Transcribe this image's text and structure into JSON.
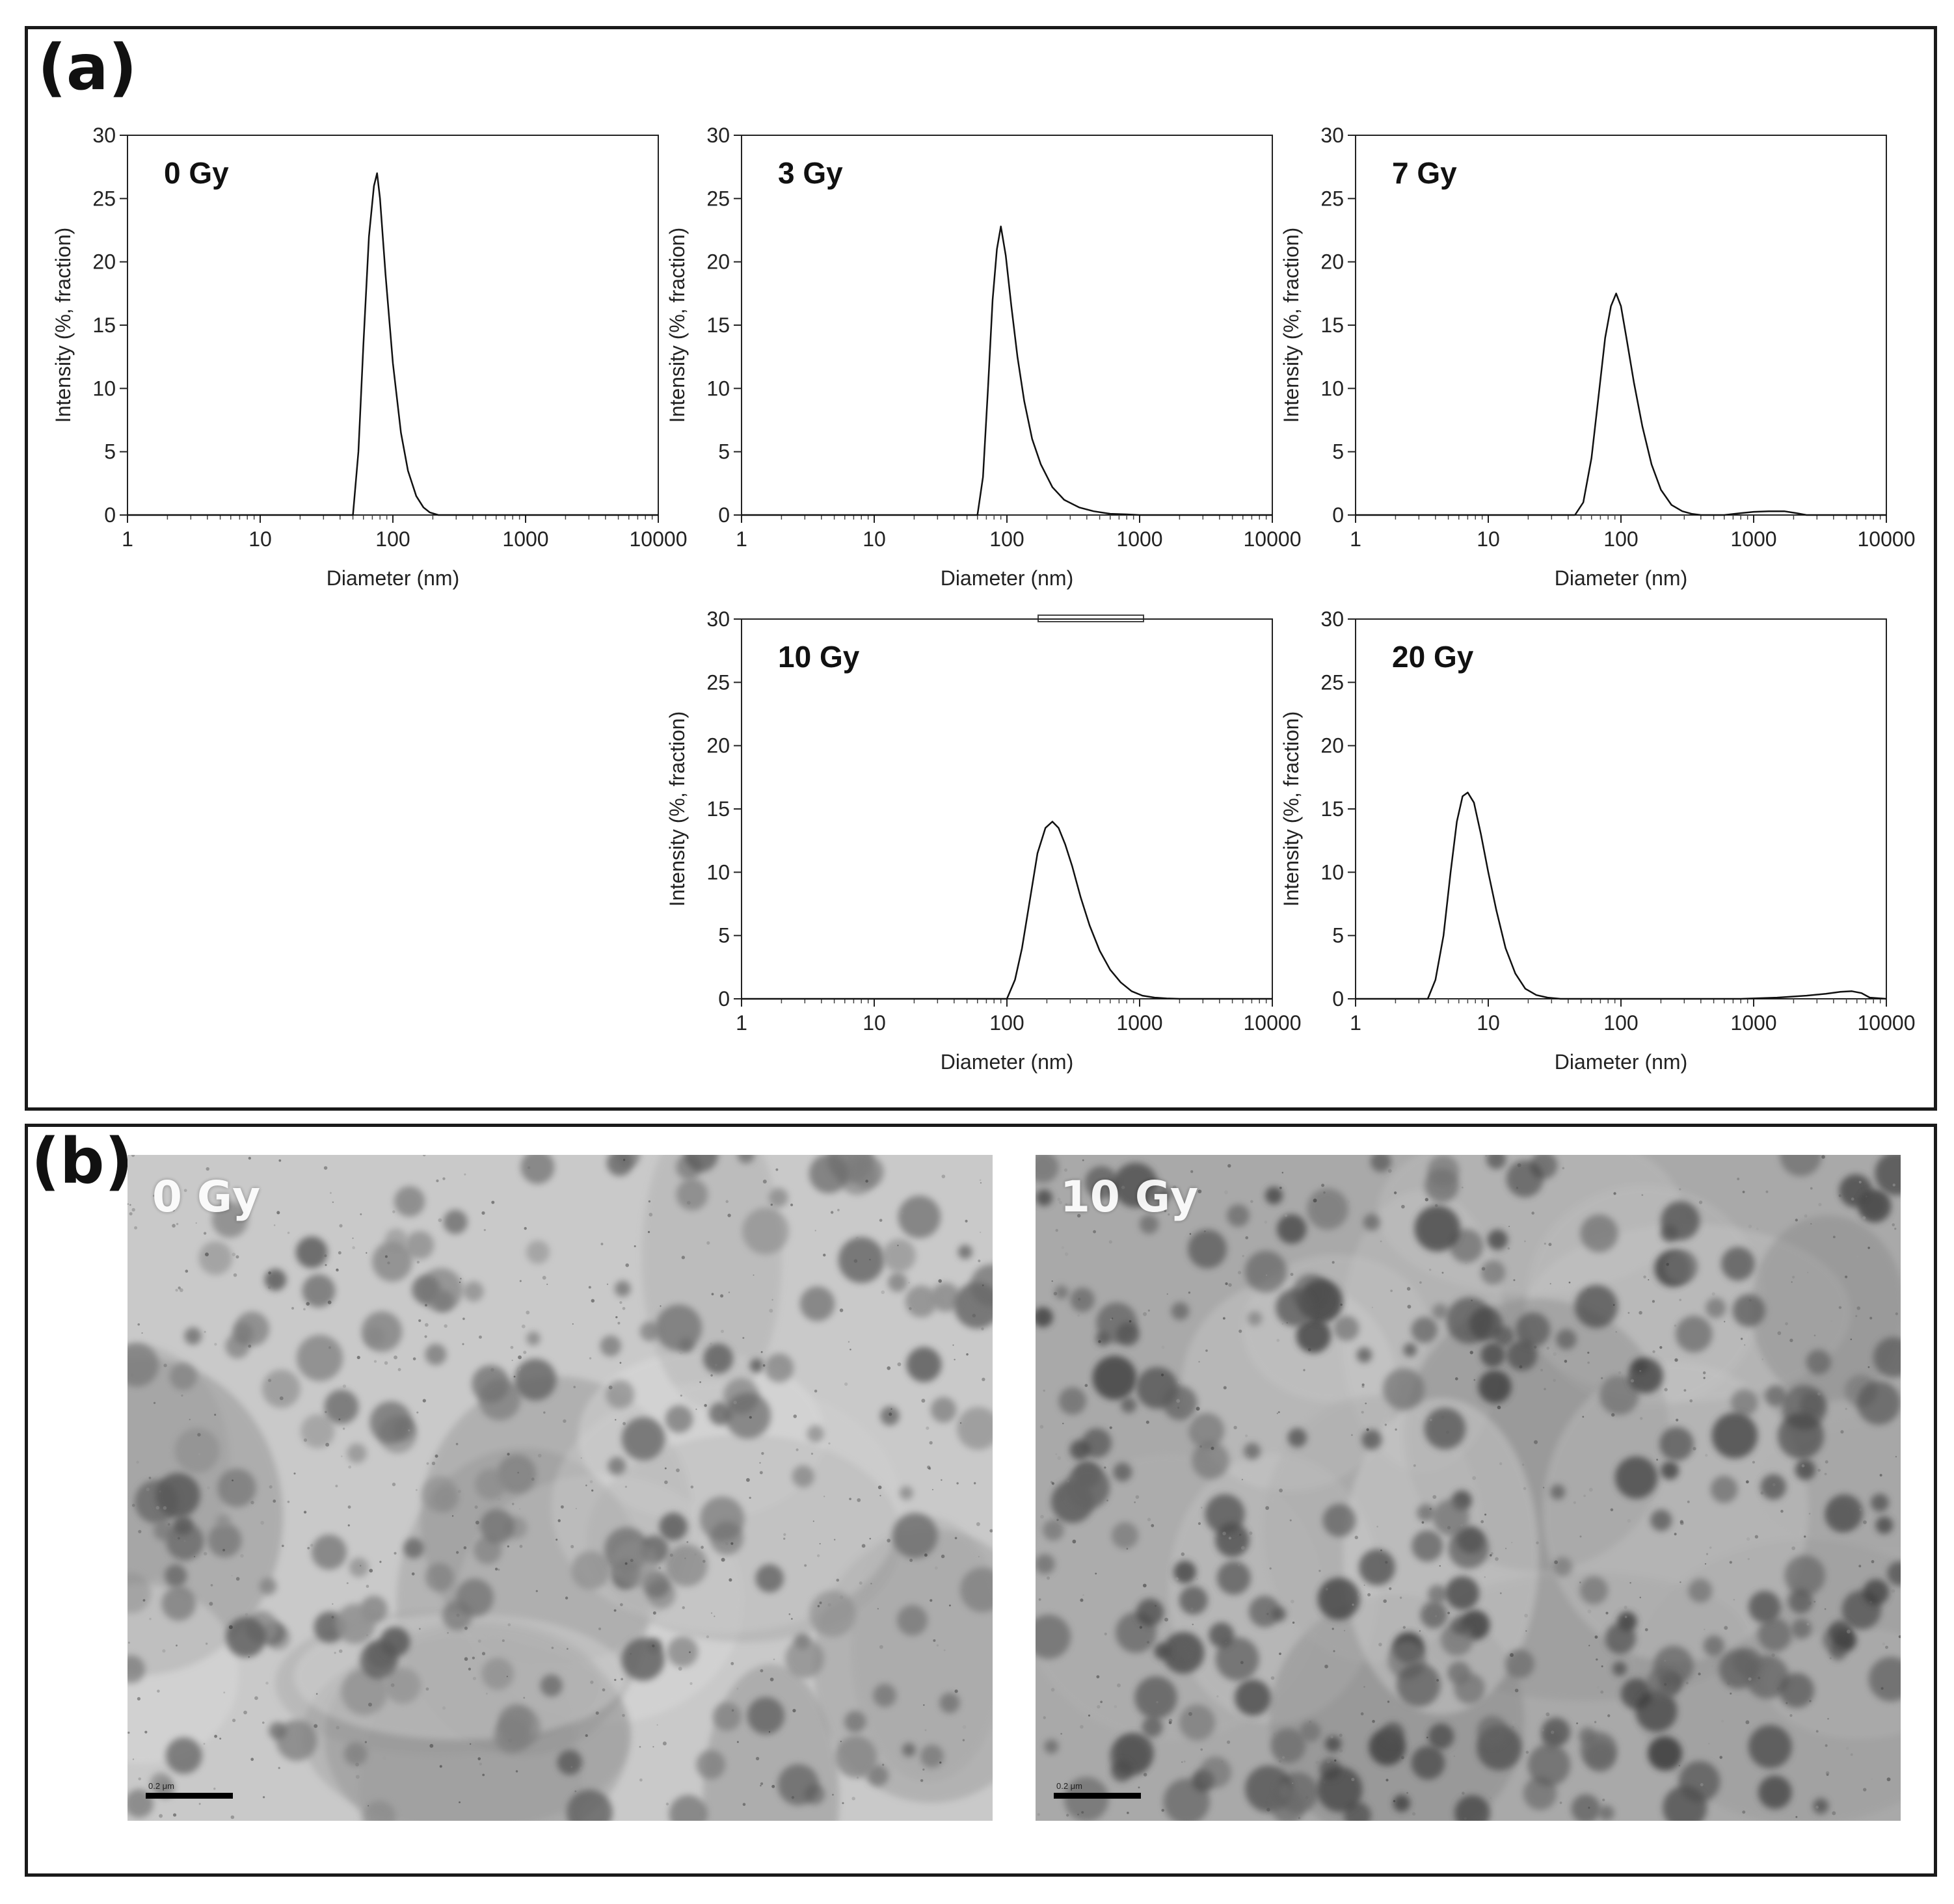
{
  "figure": {
    "panel_a_label": "(a)",
    "panel_b_label": "(b)"
  },
  "chart_data": [
    {
      "type": "line",
      "title": "0 Gy",
      "xlabel": "Diameter (nm)",
      "ylabel": "Intensity (%, fraction)",
      "xscale": "log",
      "xlim": [
        1,
        10000
      ],
      "ylim": [
        0,
        30
      ],
      "xticks": [
        "1",
        "10",
        "100",
        "1000",
        "10000"
      ],
      "yticks": [
        "0",
        "5",
        "10",
        "15",
        "20",
        "25",
        "30"
      ],
      "grid": false,
      "series": [
        {
          "x": [
            1,
            50,
            55,
            60,
            66,
            72,
            76,
            80,
            88,
            100,
            115,
            130,
            150,
            170,
            190,
            220,
            10000
          ],
          "y": [
            0,
            0,
            5,
            13.5,
            22,
            26,
            27,
            25,
            19,
            12,
            6.5,
            3.5,
            1.5,
            0.6,
            0.2,
            0,
            0
          ]
        }
      ]
    },
    {
      "type": "line",
      "title": "3 Gy",
      "xlabel": "Diameter (nm)",
      "ylabel": "Intensity (%, fraction)",
      "xscale": "log",
      "xlim": [
        1,
        10000
      ],
      "ylim": [
        0,
        30
      ],
      "xticks": [
        "1",
        "10",
        "100",
        "1000",
        "10000"
      ],
      "yticks": [
        "0",
        "5",
        "10",
        "15",
        "20",
        "25",
        "30"
      ],
      "grid": false,
      "series": [
        {
          "x": [
            1,
            60,
            66,
            72,
            78,
            84,
            90,
            98,
            108,
            120,
            135,
            155,
            180,
            220,
            270,
            350,
            450,
            600,
            800,
            1000,
            10000
          ],
          "y": [
            0,
            0,
            3,
            10,
            17,
            21,
            22.8,
            20.5,
            16.5,
            12.5,
            9,
            6,
            4,
            2.2,
            1.2,
            0.6,
            0.3,
            0.1,
            0.05,
            0,
            0
          ]
        }
      ]
    },
    {
      "type": "line",
      "title": "7 Gy",
      "xlabel": "Diameter (nm)",
      "ylabel": "Intensity (%, fraction)",
      "xscale": "log",
      "xlim": [
        1,
        10000
      ],
      "ylim": [
        0,
        30
      ],
      "xticks": [
        "1",
        "10",
        "100",
        "1000",
        "10000"
      ],
      "yticks": [
        "0",
        "5",
        "10",
        "15",
        "20",
        "25",
        "30"
      ],
      "grid": false,
      "series": [
        {
          "x": [
            1,
            45,
            52,
            60,
            68,
            76,
            84,
            92,
            100,
            110,
            125,
            145,
            170,
            200,
            240,
            290,
            340,
            400,
            600,
            800,
            1000,
            1300,
            1700,
            2100,
            2500,
            10000
          ],
          "y": [
            0,
            0,
            1,
            4.5,
            9.5,
            14,
            16.5,
            17.5,
            16.5,
            14,
            10.5,
            7,
            4,
            2,
            0.8,
            0.3,
            0.1,
            0,
            0,
            0.15,
            0.25,
            0.3,
            0.3,
            0.15,
            0,
            0
          ]
        }
      ]
    },
    {
      "type": "line",
      "title": "10 Gy",
      "xlabel": "Diameter (nm)",
      "ylabel": "Intensity (%, fraction)",
      "xscale": "log",
      "xlim": [
        1,
        10000
      ],
      "ylim": [
        0,
        30
      ],
      "xticks": [
        "1",
        "10",
        "100",
        "1000",
        "10000"
      ],
      "yticks": [
        "0",
        "5",
        "10",
        "15",
        "20",
        "25",
        "30"
      ],
      "grid": false,
      "series": [
        {
          "x": [
            1,
            100,
            115,
            130,
            150,
            170,
            195,
            220,
            245,
            275,
            310,
            360,
            420,
            500,
            600,
            720,
            870,
            1050,
            1300,
            1600,
            2000,
            10000
          ],
          "y": [
            0,
            0,
            1.5,
            4,
            8,
            11.5,
            13.5,
            14,
            13.5,
            12.2,
            10.5,
            8,
            5.8,
            3.8,
            2.3,
            1.3,
            0.6,
            0.25,
            0.1,
            0.03,
            0,
            0
          ]
        }
      ]
    },
    {
      "type": "line",
      "title": "20 Gy",
      "xlabel": "Diameter (nm)",
      "ylabel": "Intensity (%, fraction)",
      "xscale": "log",
      "xlim": [
        1,
        10000
      ],
      "ylim": [
        0,
        30
      ],
      "xticks": [
        "1",
        "10",
        "100",
        "1000",
        "10000"
      ],
      "yticks": [
        "0",
        "5",
        "10",
        "15",
        "20",
        "25",
        "30"
      ],
      "grid": false,
      "series": [
        {
          "x": [
            1,
            3.5,
            4,
            4.6,
            5.2,
            5.8,
            6.4,
            7,
            7.8,
            8.8,
            10,
            11.5,
            13.5,
            16,
            19,
            23,
            28,
            35,
            800,
            1500,
            2500,
            3500,
            4500,
            5500,
            6500,
            7500,
            10000
          ],
          "y": [
            0,
            0,
            1.5,
            5,
            10,
            14,
            16,
            16.3,
            15.5,
            13,
            10,
            7,
            4,
            2,
            0.8,
            0.3,
            0.1,
            0,
            0,
            0.1,
            0.25,
            0.4,
            0.55,
            0.6,
            0.45,
            0.1,
            0
          ]
        }
      ]
    }
  ],
  "tem_images": [
    {
      "label": "0 Gy",
      "scale_text": "0.2 μm"
    },
    {
      "label": "10 Gy",
      "scale_text": "0.2 μm"
    }
  ]
}
